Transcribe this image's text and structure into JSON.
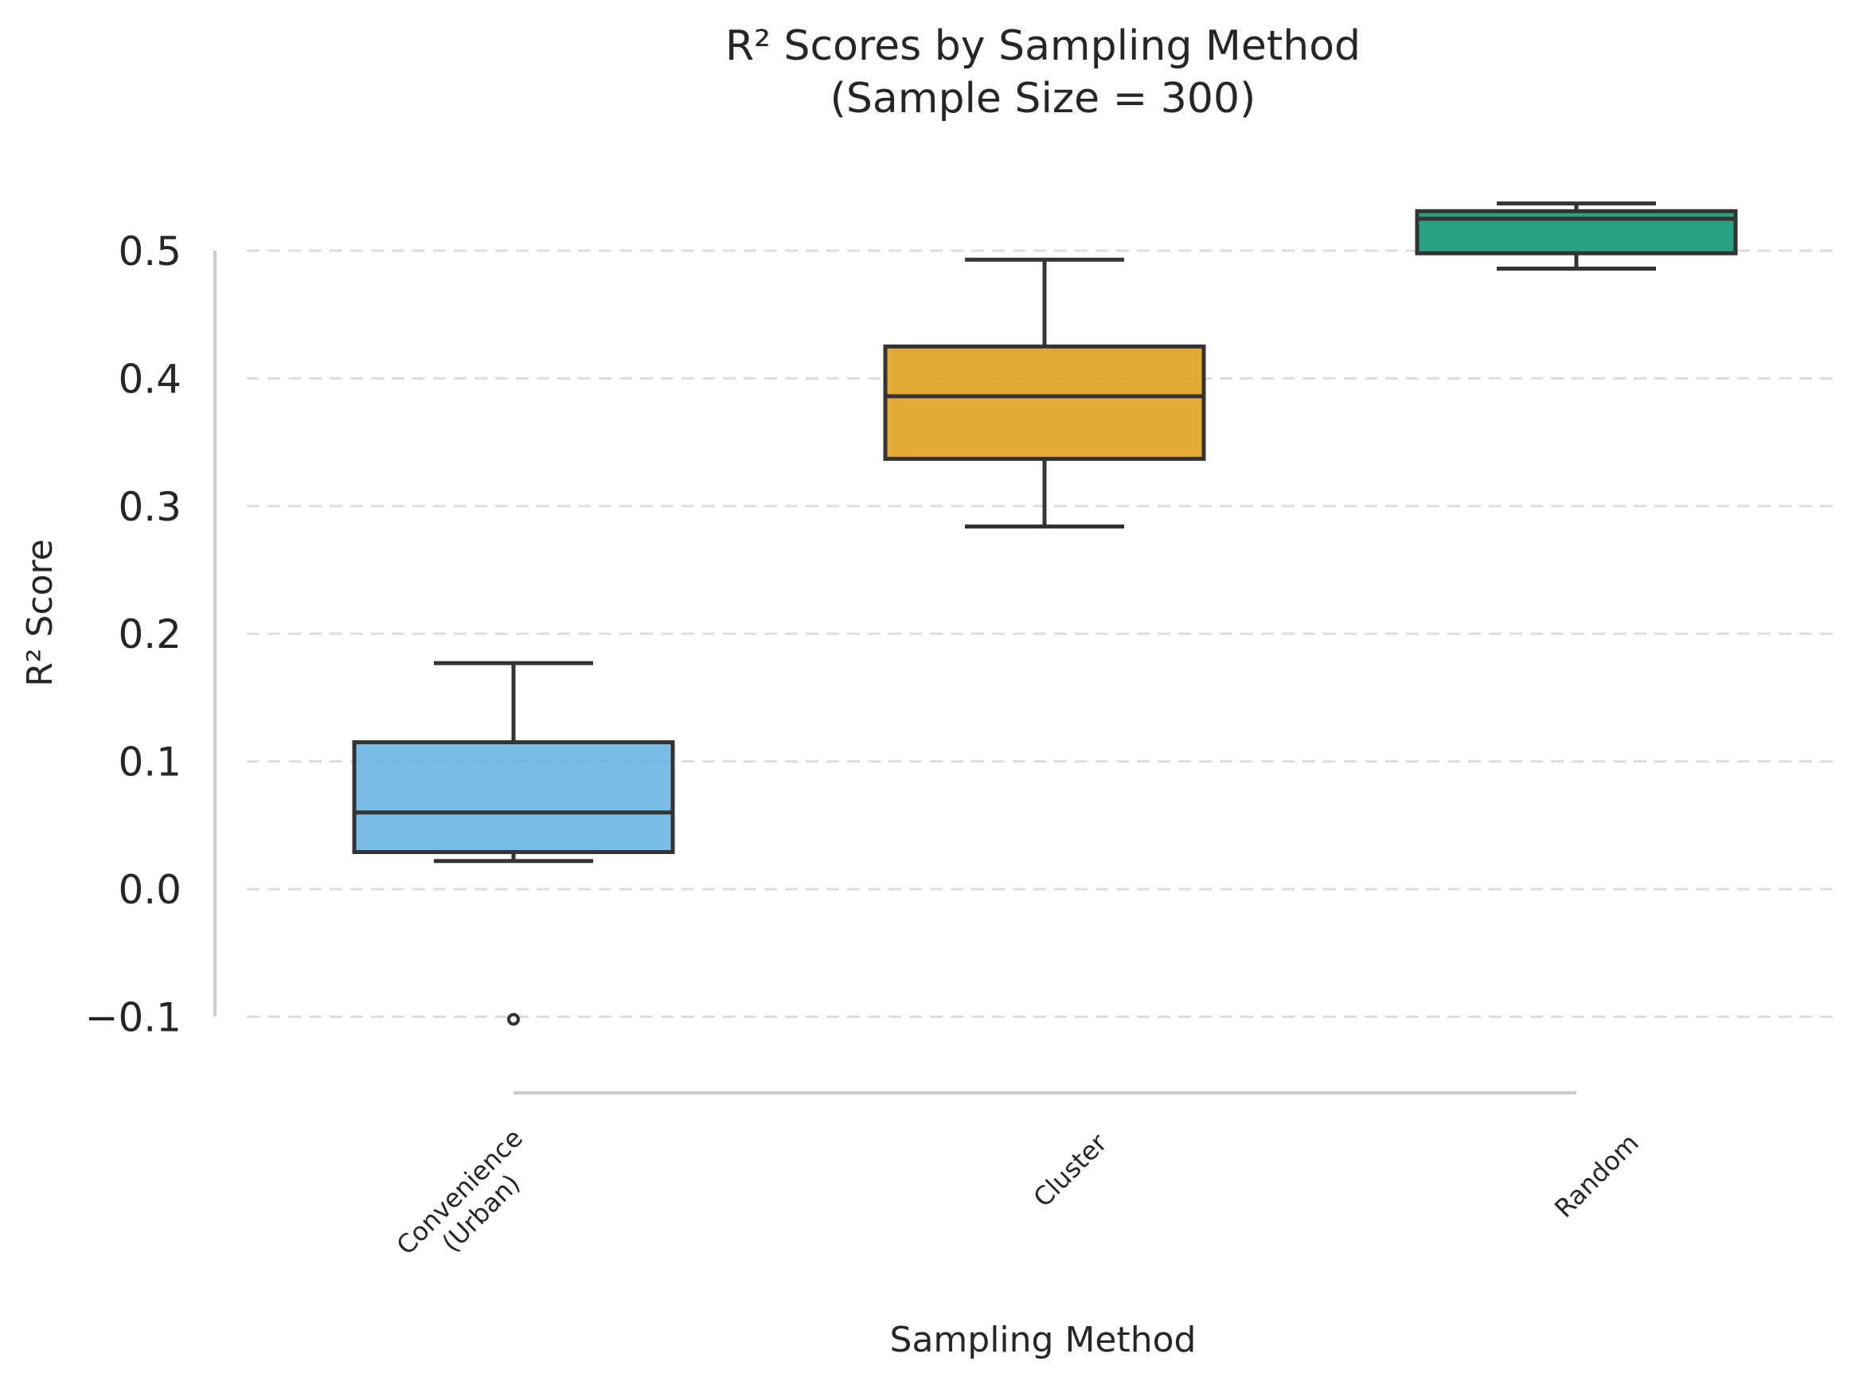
{
  "chart_data": {
    "type": "box",
    "title": "R² Scores by Sampling Method",
    "subtitle": "(Sample Size = 300)",
    "xlabel": "Sampling Method",
    "ylabel": "R² Score",
    "ylim": [
      -0.14,
      0.55
    ],
    "yticks": [
      -0.1,
      0.0,
      0.1,
      0.2,
      0.3,
      0.4,
      0.5
    ],
    "ytick_labels": [
      "−0.1",
      "0.0",
      "0.1",
      "0.2",
      "0.3",
      "0.4",
      "0.5"
    ],
    "grid": "horizontal dashed",
    "categories": [
      {
        "label_lines": [
          "Convenience",
          "(Urban)"
        ],
        "color": "#6cb4e0",
        "whisker_low": 0.022,
        "q1": 0.029,
        "median": 0.06,
        "q3": 0.115,
        "whisker_high": 0.177,
        "outliers": [
          -0.102
        ]
      },
      {
        "label_lines": [
          "Cluster"
        ],
        "color": "#e0a21f",
        "whisker_low": 0.284,
        "q1": 0.337,
        "median": 0.386,
        "q3": 0.425,
        "whisker_high": 0.493,
        "outliers": []
      },
      {
        "label_lines": [
          "Random"
        ],
        "color": "#129877",
        "whisker_low": 0.486,
        "q1": 0.498,
        "median": 0.525,
        "q3": 0.531,
        "whisker_high": 0.537,
        "outliers": []
      }
    ]
  }
}
